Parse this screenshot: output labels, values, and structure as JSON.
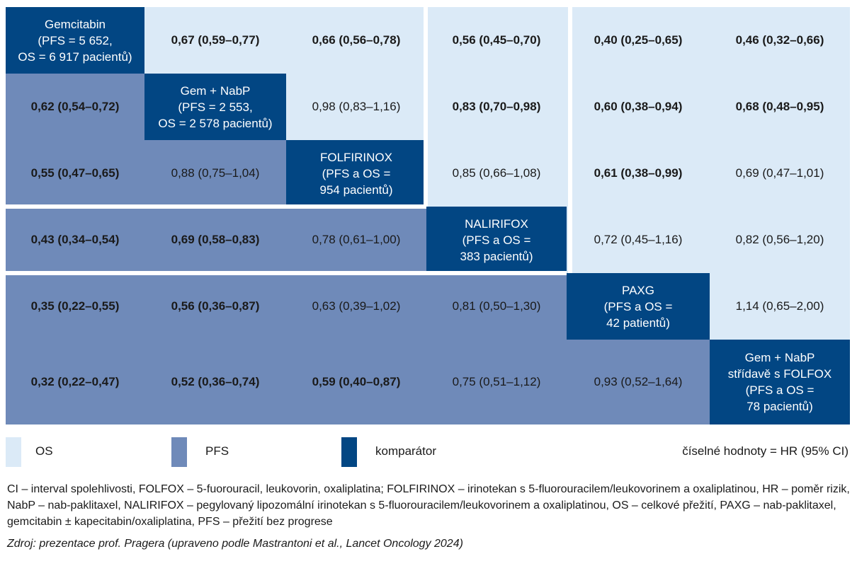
{
  "chart_data": {
    "type": "table",
    "colors": {
      "os": "#dbeaf7",
      "pfs": "#6f8ab9",
      "comparator": "#024683"
    },
    "comparators": [
      [
        "Gemcitabin",
        "(PFS = 5 652,",
        "OS = 6 917 pacientů)"
      ],
      [
        "Gem + NabP",
        "(PFS = 2 553,",
        "OS = 2 578 pacientů)"
      ],
      [
        "FOLFIRINOX",
        "(PFS a OS =",
        "954 pacientů)"
      ],
      [
        "NALIRIFOX",
        "(PFS a OS =",
        "383 pacientů)"
      ],
      [
        "PAXG",
        "(PFS a OS =",
        "42 patientů)"
      ],
      [
        "Gem + NabP",
        "střídavě s FOLFOX",
        "(PFS a OS =",
        "78 pacientů)"
      ]
    ],
    "cells": [
      [
        null,
        "0,67 (0,59–0,77)",
        "0,66 (0,56–0,78)",
        "0,56 (0,45–0,70)",
        "0,40 (0,25–0,65)",
        "0,46 (0,32–0,66)"
      ],
      [
        "0,62 (0,54–0,72)",
        null,
        "0,98 (0,83–1,16)",
        "0,83 (0,70–0,98)",
        "0,60 (0,38–0,94)",
        "0,68 (0,48–0,95)"
      ],
      [
        "0,55 (0,47–0,65)",
        "0,88 (0,75–1,04)",
        null,
        "0,85 (0,66–1,08)",
        "0,61 (0,38–0,99)",
        "0,69 (0,47–1,01)"
      ],
      [
        "0,43 (0,34–0,54)",
        "0,69 (0,58–0,83)",
        "0,78 (0,61–1,00)",
        null,
        "0,72 (0,45–1,16)",
        "0,82 (0,56–1,20)"
      ],
      [
        "0,35 (0,22–0,55)",
        "0,56 (0,36–0,87)",
        "0,63 (0,39–1,02)",
        "0,81 (0,50–1,30)",
        null,
        "1,14 (0,65–2,00)"
      ],
      [
        "0,32 (0,22–0,47)",
        "0,52 (0,36–0,74)",
        "0,59 (0,40–0,87)",
        "0,75 (0,51–1,12)",
        "0,93 (0,52–1,64)",
        null
      ]
    ],
    "bold": [
      [
        false,
        true,
        true,
        true,
        true,
        true
      ],
      [
        true,
        false,
        false,
        true,
        true,
        true
      ],
      [
        true,
        false,
        false,
        false,
        true,
        false
      ],
      [
        true,
        true,
        false,
        false,
        false,
        false
      ],
      [
        true,
        true,
        false,
        false,
        false,
        false
      ],
      [
        true,
        true,
        true,
        false,
        false,
        false
      ]
    ]
  },
  "legend": {
    "os_label": "OS",
    "pfs_label": "PFS",
    "comparator_label": "komparátor",
    "values_note": "číselné hodnoty = HR (95% CI)"
  },
  "notes": {
    "abbreviations": "CI – interval spolehlivosti, FOLFOX – 5-fuorouracil, leukovorin, oxaliplatina; FOLFIRINOX – irinotekan s 5-fluorouracilem/leukovorinem a oxaliplatinou, HR – poměr rizik, NabP – nab-paklitaxel, NALIRIFOX – pegylovaný lipozomální irinotekan s 5-fluorouracilem/leukovorinem a oxaliplatinou, OS – celkové přežití, PAXG – nab-paklitaxel, gemcitabin ± kapecitabin/oxaliplatina, PFS – přežití bez progrese",
    "source": "Zdroj: prezentace prof. Pragera (upraveno podle Mastrantoni et al., Lancet Oncology 2024)"
  }
}
